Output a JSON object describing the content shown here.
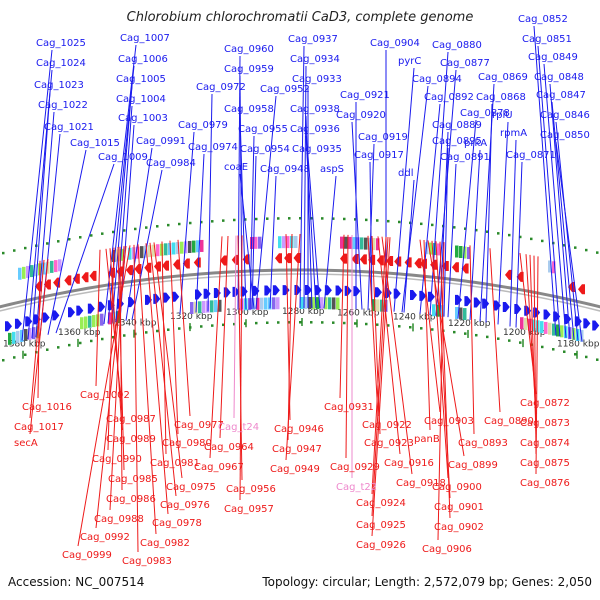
{
  "title": "Chlorobium chlorochromatii CaD3, complete genome",
  "footer": {
    "accession": "Accession: NC_007514",
    "stats": "Topology: circular; Length: 2,572,079 bp; Genes: 2,050"
  },
  "colors": {
    "forward": "#1a1aee",
    "reverse": "#ee1a1a",
    "trna": "#ee88cc",
    "backbone": "#888888",
    "tick": "#2a8a2a"
  },
  "kbp_labels": [
    "1380 kbp",
    "1360 kbp",
    "1340 kbp",
    "1320 kbp",
    "1300 kbp",
    "1280 kbp",
    "1260 kbp",
    "1240 kbp",
    "1220 kbp",
    "1200 kbp",
    "1180 kbp"
  ],
  "forward_genes": [
    "Cag_1025",
    "Cag_1024",
    "Cag_1023",
    "Cag_1022",
    "Cag_1021",
    "Cag_1015",
    "Cag_1009",
    "Cag_1007",
    "Cag_1006",
    "Cag_1005",
    "Cag_1004",
    "Cag_1003",
    "Cag_0991",
    "Cag_0984",
    "Cag_0979",
    "Cag_0974",
    "Cag_0972",
    "Cag_0960",
    "Cag_0959",
    "Cag_0958",
    "Cag_0955",
    "Cag_0954",
    "Cag_0952",
    "coaE",
    "Cag_0948",
    "Cag_0937",
    "Cag_0934",
    "Cag_0933",
    "Cag_0938",
    "Cag_0936",
    "Cag_0935",
    "aspS",
    "Cag_0921",
    "Cag_0920",
    "Cag_0919",
    "Cag_0917",
    "Cag_0904",
    "pyrC",
    "Cag_0894",
    "ddl",
    "Cag_0892",
    "Cag_0880",
    "Cag_0877",
    "Cag_0889",
    "Cag_0895",
    "Cag_0891",
    "Cag_0878",
    "prkA",
    "Cag_0869",
    "Cag_0868",
    "rplU",
    "rpmA",
    "Cag_0871",
    "Cag_0852",
    "Cag_0851",
    "Cag_0849",
    "Cag_0848",
    "Cag_0847",
    "Cag_0846",
    "Cag_0850"
  ],
  "reverse_genes": [
    "Cag_1016",
    "Cag_1017",
    "secA",
    "Cag_1002",
    "Cag_0987",
    "Cag_0989",
    "Cag_0990",
    "Cag_0985",
    "Cag_0986",
    "Cag_0988",
    "Cag_0992",
    "Cag_0999",
    "Cag_0983",
    "Cag_0982",
    "Cag_0978",
    "Cag_0976",
    "Cag_0975",
    "Cag_0981",
    "Cag_0980",
    "Cag_0977",
    "Cag_t24",
    "Cag_0964",
    "Cag_0967",
    "Cag_0956",
    "Cag_0957",
    "Cag_0946",
    "Cag_0947",
    "Cag_0949",
    "Cag_0931",
    "Cag_0929",
    "Cag_t22",
    "Cag_0922",
    "Cag_0923",
    "Cag_0916",
    "Cag_0918",
    "Cag_0924",
    "Cag_0925",
    "Cag_0926",
    "Cag_0903",
    "panB",
    "Cag_0899",
    "Cag_0900",
    "Cag_0901",
    "Cag_0902",
    "Cag_0906",
    "Cag_0893",
    "Cag_0890",
    "Cag_0872",
    "Cag_0873",
    "Cag_0874",
    "Cag_0875",
    "Cag_0876"
  ]
}
